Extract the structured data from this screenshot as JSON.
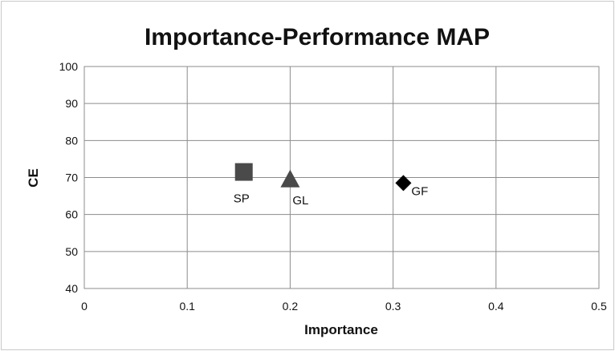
{
  "chart_data": {
    "type": "scatter",
    "title": "Importance-Performance MAP",
    "xlabel": "Importance",
    "ylabel": "CE",
    "xlim": [
      0,
      0.5
    ],
    "ylim": [
      40,
      100
    ],
    "x_ticks": [
      "0",
      "0.1",
      "0.2",
      "0.3",
      "0.4",
      "0.5"
    ],
    "y_ticks": [
      "40",
      "50",
      "60",
      "70",
      "80",
      "90",
      "100"
    ],
    "grid": true,
    "legend": "none",
    "points": [
      {
        "label": "SP",
        "x": 0.155,
        "y": 71.5,
        "marker": "square",
        "color": "#4a4a4a"
      },
      {
        "label": "GL",
        "x": 0.2,
        "y": 69.5,
        "marker": "triangle",
        "color": "#4a4a4a"
      },
      {
        "label": "GF",
        "x": 0.31,
        "y": 68.5,
        "marker": "diamond",
        "color": "#000000"
      }
    ]
  }
}
